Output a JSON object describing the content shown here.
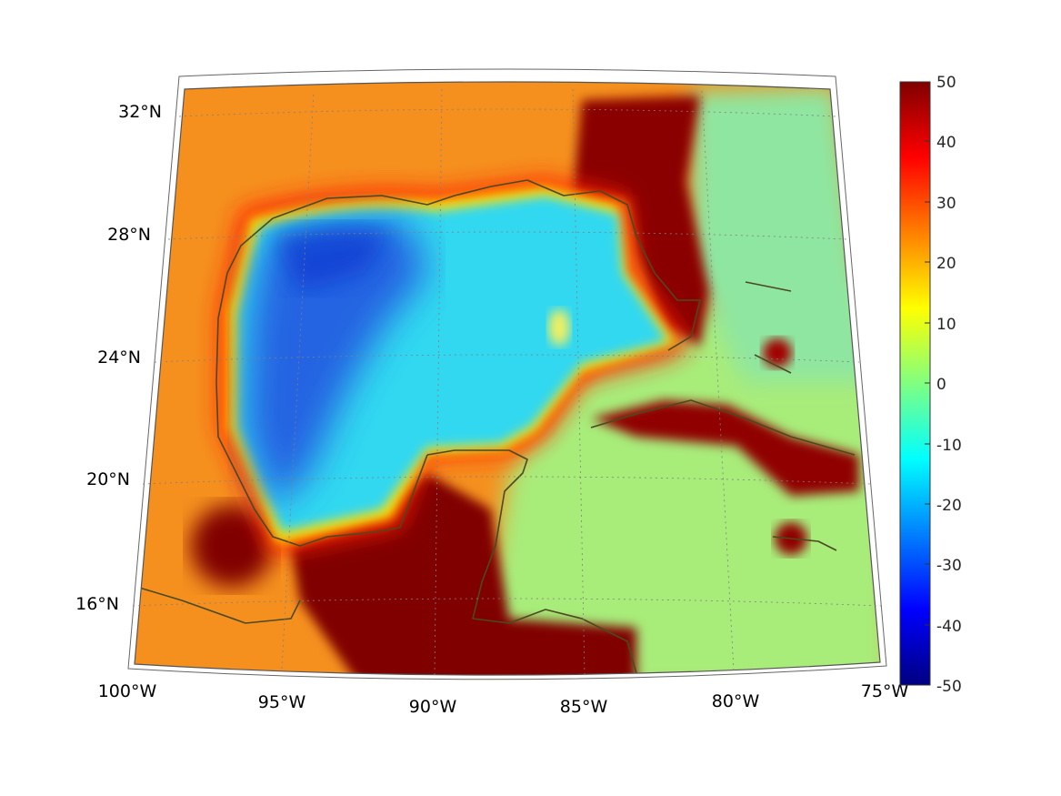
{
  "map": {
    "region": "Gulf of Mexico and Caribbean",
    "lon_labels": [
      "100°W",
      "95°W",
      "90°W",
      "85°W",
      "80°W",
      "75°W"
    ],
    "lat_labels": [
      "32°N",
      "28°N",
      "24°N",
      "20°N",
      "16°N"
    ],
    "colorbar": {
      "colormap": "jet",
      "ticks": [
        "50",
        "40",
        "30",
        "20",
        "10",
        "0",
        "-10",
        "-20",
        "-30",
        "-40",
        "-50"
      ],
      "range": [
        -50,
        50
      ]
    },
    "colors": {
      "land_far": "#f5901e",
      "land_coast": "#800000",
      "deep_gulf": "#2050e0",
      "shelf_gulf": "#30d8f0",
      "caribbean": "#a8ec7a",
      "coastline": "#4a4a20"
    }
  }
}
